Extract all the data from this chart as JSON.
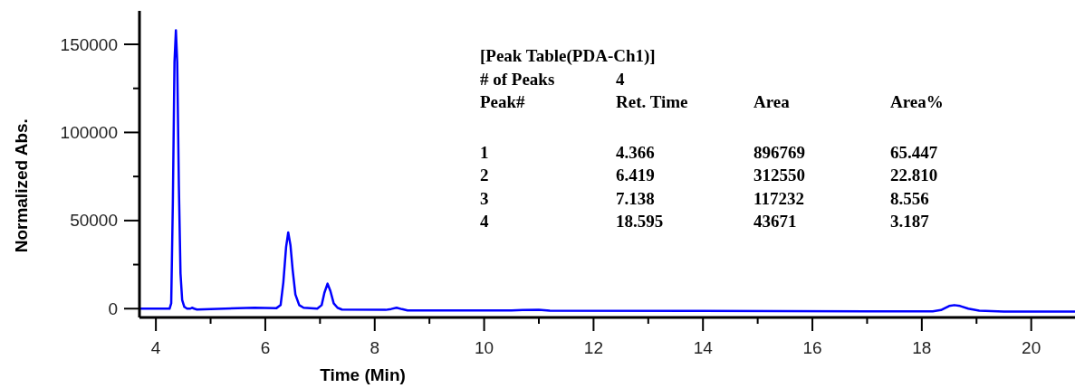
{
  "chart_data": {
    "type": "line",
    "xlabel": "Time (Min)",
    "ylabel": "Normalized Abs.",
    "annotations": [
      "[Peak Table(PDA-Ch1)]",
      "# of Peaks\t4",
      "Peak#\tRet. Time\tArea\tArea%",
      "1\t4.366\t896769\t65.447",
      "2\t6.419\t312550\t22.810",
      "3\t7.138\t117232\t8.556",
      "4\t18.595\t43671\t3.187"
    ],
    "xlim": [
      3.7,
      20.8
    ],
    "ylim": [
      -5000,
      169000
    ],
    "xticks": [
      4,
      {
        "value": 5,
        "label": null
      },
      6,
      {
        "value": 7,
        "label": null
      },
      8,
      {
        "value": 9,
        "label": null
      },
      10,
      {
        "value": 11,
        "label": null
      },
      12,
      {
        "value": 13,
        "label": null
      },
      14,
      {
        "value": 15,
        "label": null
      },
      16,
      {
        "value": 17,
        "label": null
      },
      18,
      {
        "value": 19,
        "label": null
      },
      20
    ],
    "yticks": [
      0,
      {
        "value": 25000,
        "label": null
      },
      50000,
      {
        "value": 75000,
        "label": null
      },
      100000,
      {
        "value": 125000,
        "label": null
      },
      150000
    ],
    "marker": "none",
    "line_style": "solid",
    "series": [
      {
        "color": "#0000ff",
        "x": [
          3.7,
          4.25,
          4.28,
          4.31,
          4.34,
          4.366,
          4.39,
          4.42,
          4.45,
          4.48,
          4.52,
          4.57,
          4.63,
          4.66,
          4.7,
          4.75,
          5.0,
          5.5,
          5.8,
          6.2,
          6.28,
          6.33,
          6.38,
          6.419,
          6.46,
          6.5,
          6.55,
          6.62,
          6.7,
          6.95,
          7.03,
          7.08,
          7.138,
          7.19,
          7.25,
          7.32,
          7.4,
          8.2,
          8.3,
          8.4,
          8.5,
          8.6,
          10.5,
          10.7,
          11.0,
          11.2,
          14,
          17,
          18.2,
          18.35,
          18.5,
          18.595,
          18.7,
          18.85,
          19.05,
          19.5,
          20.8
        ],
        "values": [
          0,
          0,
          3000,
          60000,
          140000,
          158000,
          140000,
          70000,
          20000,
          5000,
          1000,
          0,
          0,
          500,
          0,
          -500,
          -200,
          300,
          500,
          200,
          2000,
          15000,
          35000,
          43300,
          36000,
          22000,
          8000,
          2000,
          500,
          0,
          2000,
          9000,
          14200,
          10000,
          3000,
          500,
          -500,
          -700,
          -200,
          500,
          -300,
          -1000,
          -1000,
          -800,
          -600,
          -1200,
          -1300,
          -1500,
          -1500,
          -800,
          1500,
          2000,
          1500,
          0,
          -1200,
          -1600,
          -1700
        ]
      }
    ]
  }
}
